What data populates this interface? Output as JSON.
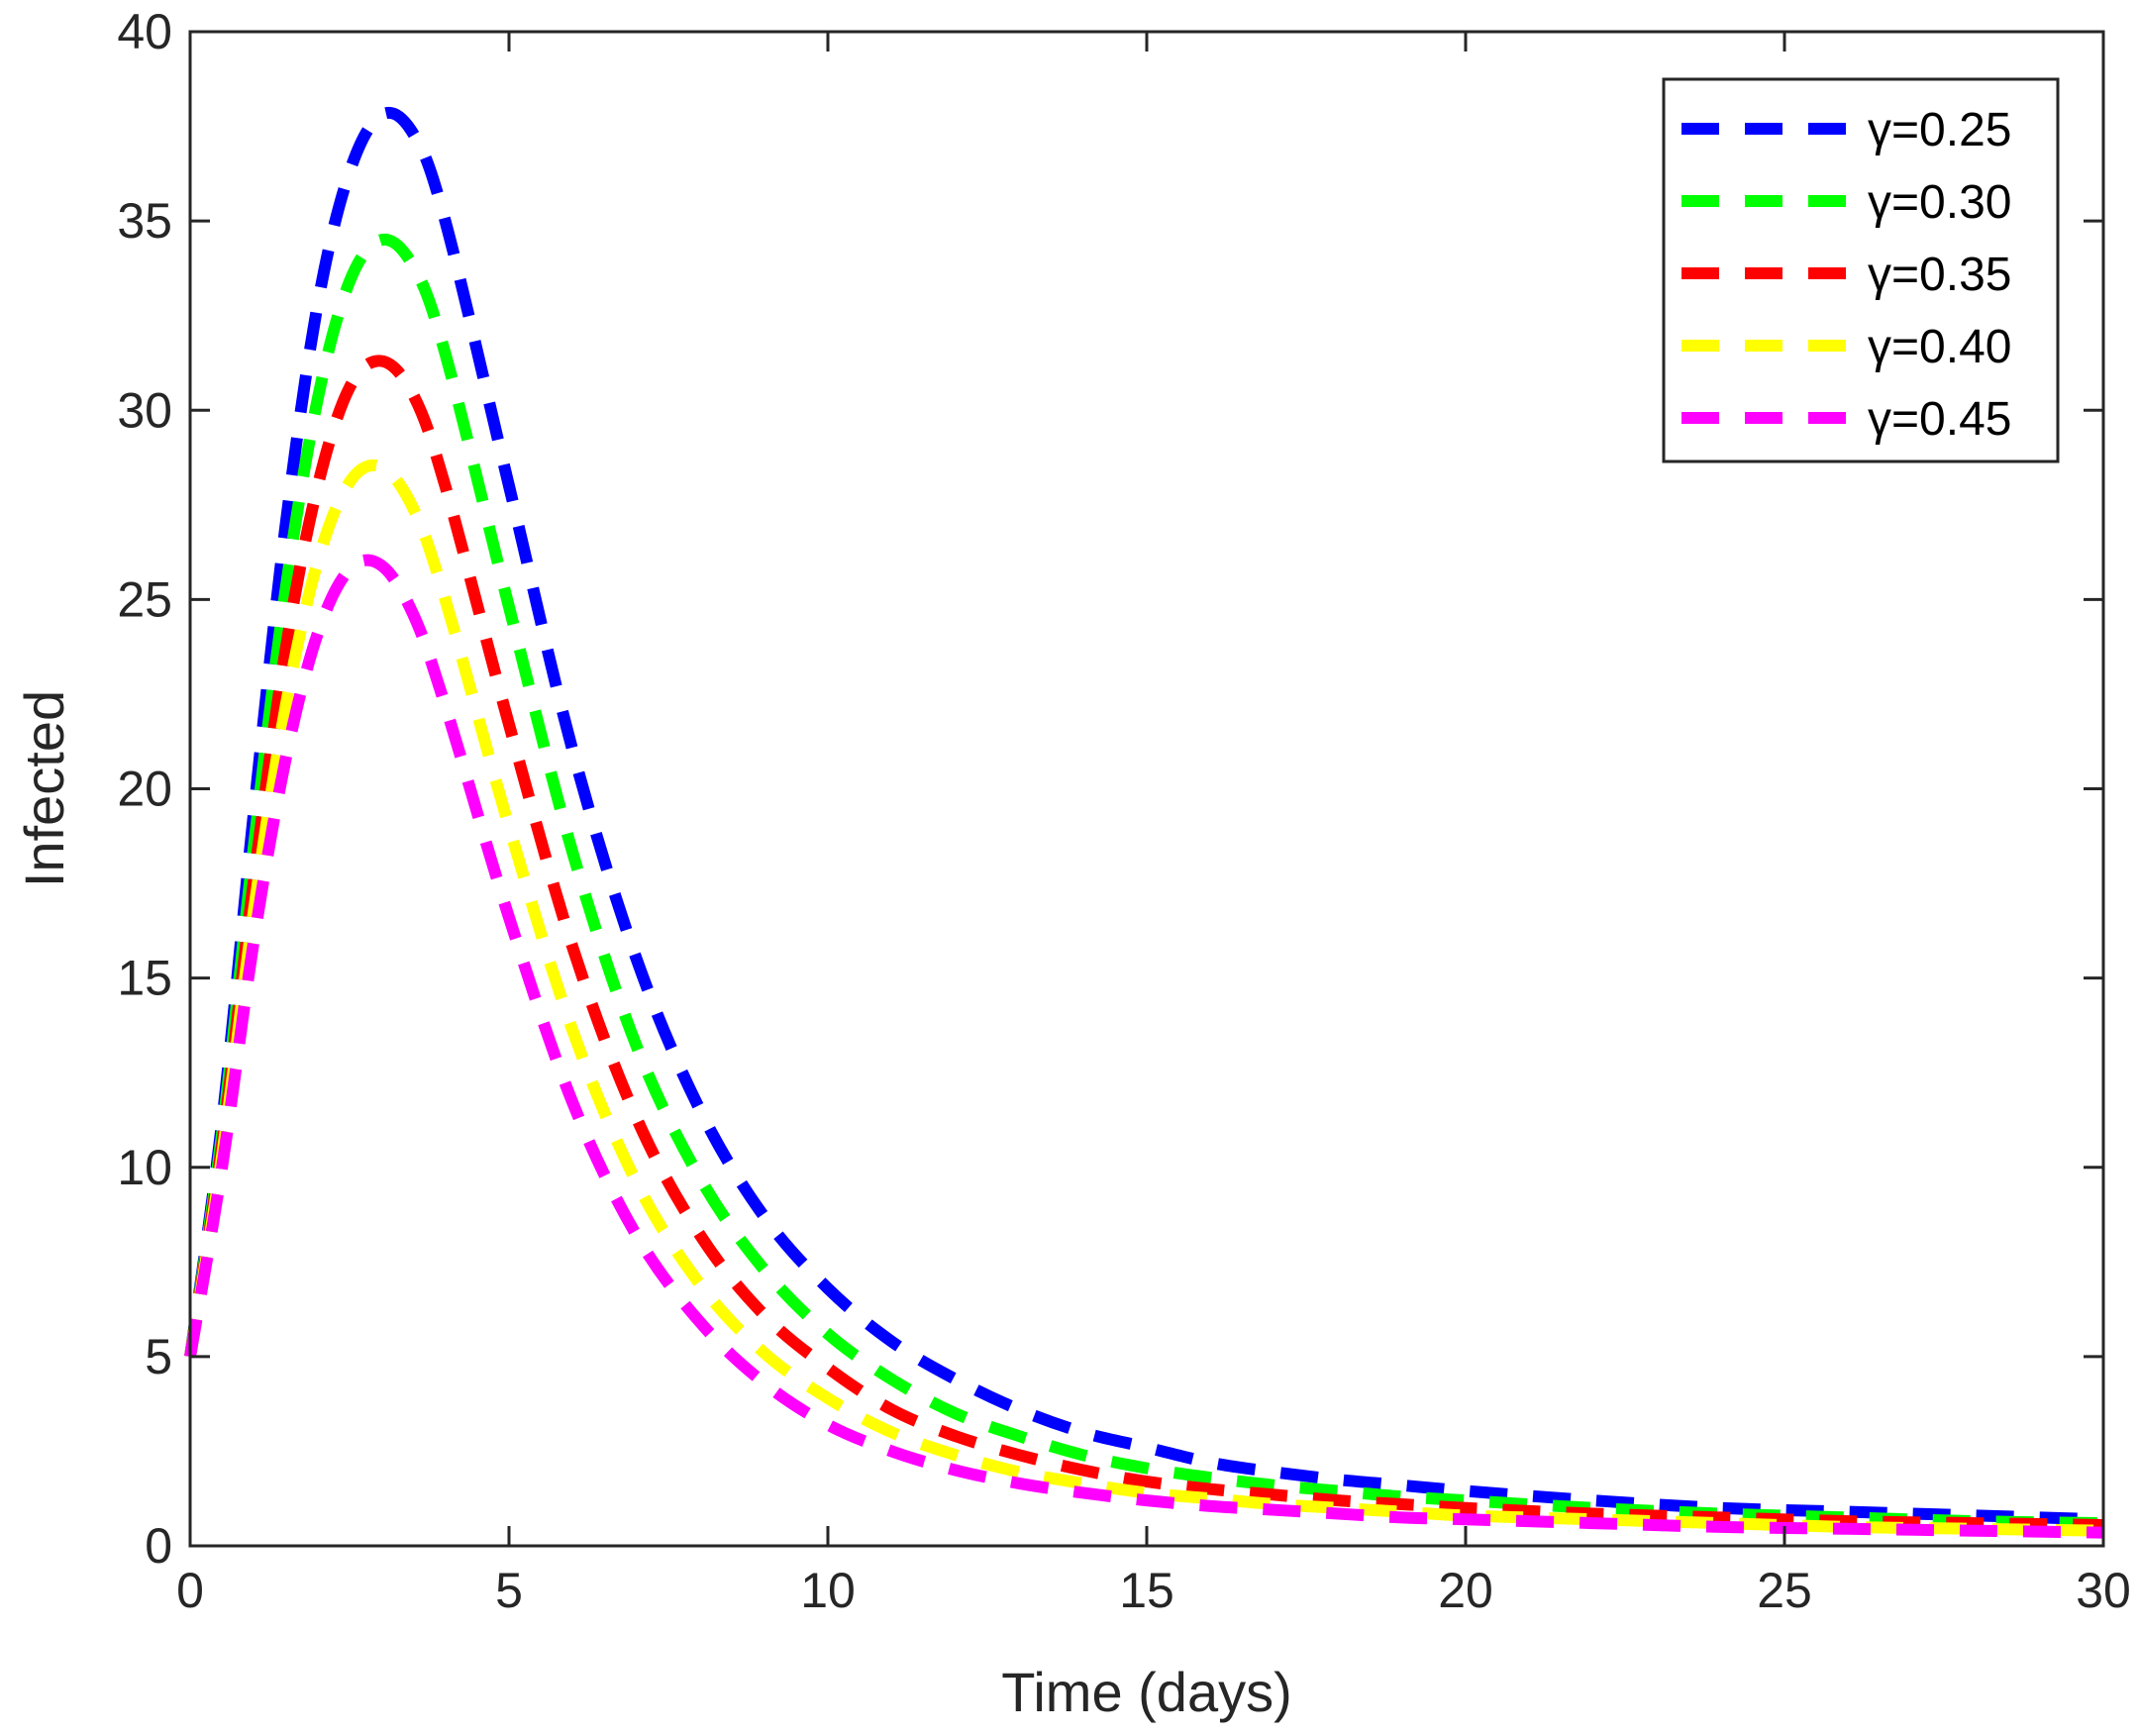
{
  "chart_data": {
    "type": "line",
    "title": "",
    "xlabel": "Time (days)",
    "ylabel": "Infected",
    "xlim": [
      0,
      30
    ],
    "ylim": [
      0,
      40
    ],
    "xticks": [
      0,
      5,
      10,
      15,
      20,
      25,
      30
    ],
    "yticks": [
      0,
      5,
      10,
      15,
      20,
      25,
      30,
      35,
      40
    ],
    "grid": false,
    "legend_position": "top-right",
    "line_style": "dashed",
    "x": [
      0,
      0.5,
      1,
      1.5,
      2,
      2.5,
      3,
      3.5,
      4,
      5,
      6,
      7,
      8,
      9,
      10,
      11,
      12,
      13,
      14,
      15,
      16,
      17,
      18,
      19,
      20,
      22,
      24,
      26,
      28,
      30
    ],
    "series": [
      {
        "name": "γ=0.25",
        "color": "#0000ff",
        "values": [
          5.0,
          11.2,
          19.4,
          27.0,
          32.8,
          36.3,
          37.8,
          37.3,
          35.0,
          28.0,
          21.0,
          15.5,
          11.5,
          8.7,
          6.8,
          5.4,
          4.4,
          3.6,
          3.0,
          2.6,
          2.2,
          1.95,
          1.75,
          1.6,
          1.45,
          1.2,
          1.0,
          0.9,
          0.8,
          0.7
        ]
      },
      {
        "name": "γ=0.30",
        "color": "#00ff00",
        "values": [
          5.0,
          10.9,
          18.5,
          25.3,
          30.3,
          33.4,
          34.5,
          33.8,
          31.5,
          24.8,
          18.3,
          13.2,
          9.7,
          7.3,
          5.6,
          4.4,
          3.5,
          2.9,
          2.4,
          2.05,
          1.8,
          1.6,
          1.45,
          1.3,
          1.2,
          1.0,
          0.85,
          0.75,
          0.65,
          0.6
        ]
      },
      {
        "name": "γ=0.35",
        "color": "#ff0000",
        "values": [
          5.0,
          10.6,
          17.6,
          23.7,
          28.0,
          30.6,
          31.3,
          30.4,
          28.0,
          21.7,
          15.8,
          11.3,
          8.2,
          6.1,
          4.7,
          3.6,
          2.9,
          2.4,
          2.0,
          1.7,
          1.5,
          1.35,
          1.2,
          1.1,
          1.0,
          0.85,
          0.75,
          0.65,
          0.6,
          0.55
        ]
      },
      {
        "name": "γ=0.40",
        "color": "#ffff00",
        "values": [
          5.0,
          10.3,
          16.8,
          22.2,
          26.0,
          28.1,
          28.5,
          27.4,
          25.0,
          19.0,
          13.6,
          9.6,
          6.9,
          5.1,
          3.9,
          3.0,
          2.4,
          1.95,
          1.65,
          1.4,
          1.25,
          1.1,
          1.0,
          0.9,
          0.8,
          0.7,
          0.6,
          0.5,
          0.45,
          0.4
        ]
      },
      {
        "name": "γ=0.45",
        "color": "#ff00ff",
        "values": [
          5.0,
          10.0,
          16.0,
          20.8,
          24.1,
          25.8,
          25.9,
          24.6,
          22.2,
          16.6,
          11.7,
          8.2,
          5.9,
          4.3,
          3.2,
          2.5,
          2.0,
          1.65,
          1.4,
          1.2,
          1.05,
          0.95,
          0.85,
          0.75,
          0.7,
          0.6,
          0.5,
          0.45,
          0.4,
          0.35
        ]
      }
    ]
  }
}
